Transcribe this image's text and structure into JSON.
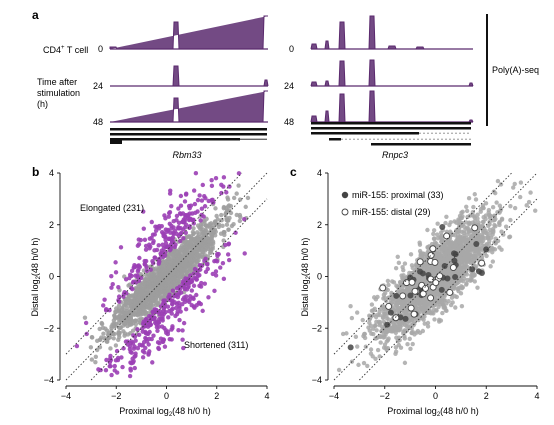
{
  "panels": {
    "a": {
      "label": "a"
    },
    "b": {
      "label": "b"
    },
    "c": {
      "label": "c"
    }
  },
  "tracks": {
    "cell_label": "CD4",
    "cell_label_sup": "+",
    "cell_label_rest": " T cell",
    "time_label_lines": [
      "Time after",
      "stimulation",
      "(h)"
    ],
    "times": [
      "0",
      "24",
      "48"
    ],
    "genes": [
      "Rbm33",
      "Rnpc3"
    ],
    "assay": "Poly(A)-seq",
    "track_color": "#5b2a6e"
  },
  "chart_data": [
    {
      "type": "scatter",
      "panel": "b",
      "xlabel": "Proximal log2(48 h/0 h)",
      "ylabel": "Distal log2(48 h/0 h)",
      "xlim": [
        -4,
        4
      ],
      "ylim": [
        -4,
        4
      ],
      "xticks": [
        "−4",
        "−2",
        "0",
        "2",
        "4"
      ],
      "yticks": [
        "−4",
        "−2",
        "0",
        "2",
        "4"
      ],
      "diagonal_offsets": [
        -1,
        0,
        1
      ],
      "annotations": [
        "Elongated (231)",
        "Shortened (311)"
      ],
      "series": [
        {
          "color": "#9e9e9e",
          "count": 1600,
          "spread": 1.05,
          "corr": 0.92
        },
        {
          "color": "#9b3fb5",
          "count": 542,
          "spread": 1.2,
          "corr": 0.7
        }
      ]
    },
    {
      "type": "scatter",
      "panel": "c",
      "xlabel": "Proximal log2(48 h/0 h)",
      "ylabel": "Distal log2(48 h/0 h)",
      "xlim": [
        -4,
        4
      ],
      "ylim": [
        -4,
        4
      ],
      "xticks": [
        "−4",
        "−2",
        "0",
        "2",
        "4"
      ],
      "yticks": [
        "−4",
        "−2",
        "0",
        "2",
        "4"
      ],
      "diagonal_offsets": [
        -1,
        0,
        1
      ],
      "legend": [
        {
          "name": "miR-155: proximal (33)",
          "marker": "filled",
          "color": "#444444"
        },
        {
          "name": "miR-155: distal (29)",
          "marker": "open",
          "color": "#444444"
        }
      ],
      "series": [
        {
          "color": "#a8a8a8",
          "count": 2100,
          "spread": 1.15,
          "corr": 0.8
        },
        {
          "name": "miR-155: proximal (33)",
          "color": "#444444",
          "count": 33,
          "spread": 1.0,
          "corr": 0.8
        },
        {
          "name": "miR-155: distal (29)",
          "color": "#444444",
          "count": 29,
          "spread": 1.0,
          "corr": 0.8,
          "open": true
        }
      ]
    }
  ]
}
